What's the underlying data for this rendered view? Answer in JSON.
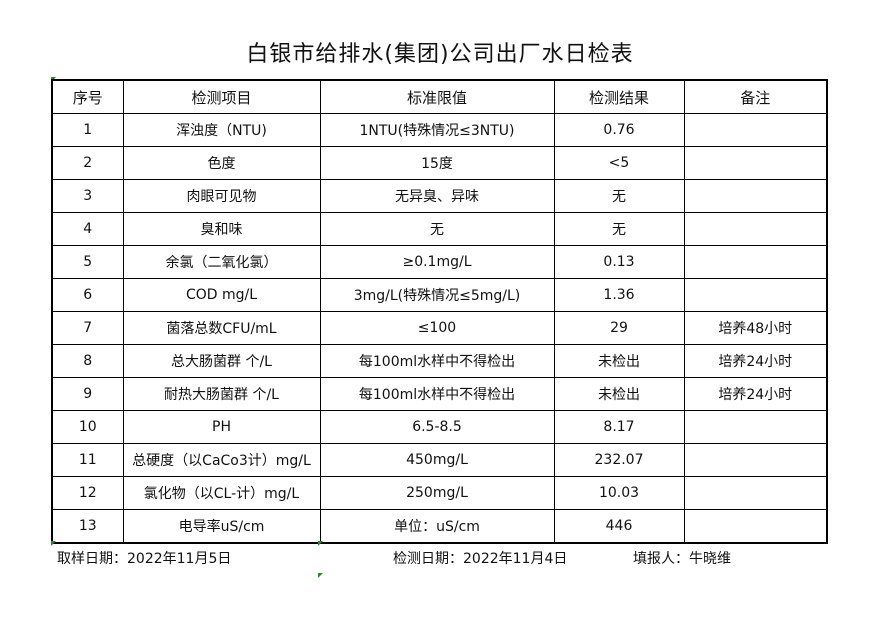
{
  "title": "白银市给排水(集团)公司出厂水日检表",
  "headers": [
    "序号",
    "检测项目",
    "标准限值",
    "检测结果",
    "备注"
  ],
  "rows": [
    [
      "1",
      "浑浊度（NTU)",
      "1NTU(特殊情况≤3NTU)",
      "0.76",
      ""
    ],
    [
      "2",
      "色度",
      "15度",
      "<5",
      ""
    ],
    [
      "3",
      "肉眼可见物",
      "无异臭、异味",
      "无",
      ""
    ],
    [
      "4",
      "臭和味",
      "无",
      "无",
      ""
    ],
    [
      "5",
      "余氯（二氧化氯）",
      "≥0.1mg/L",
      "0.13",
      ""
    ],
    [
      "6",
      "COD        mg/L",
      "3mg/L(特殊情况≤5mg/L)",
      "1.36",
      ""
    ],
    [
      "7",
      "菌落总数CFU/mL",
      "≤100",
      "29",
      "培养48小时"
    ],
    [
      "8",
      "总大肠菌群 个/L",
      "每100ml水样中不得检出",
      "未检出",
      "培养24小时"
    ],
    [
      "9",
      "耐热大肠菌群 个/L",
      "每100ml水样中不得检出",
      "未检出",
      "培养24小时"
    ],
    [
      "10",
      "PH",
      "6.5-8.5",
      "8.17",
      ""
    ],
    [
      "11",
      "总硬度（以CaCo3计）mg/L",
      "450mg/L",
      "232.07",
      ""
    ],
    [
      "12",
      "氯化物（以CL-计）mg/L",
      "250mg/L",
      "10.03",
      ""
    ],
    [
      "13",
      "电导率uS/cm",
      "单位：uS/cm",
      "446",
      ""
    ]
  ],
  "footer": {
    "sample_date": "取样日期：2022年11月5日",
    "test_date": "检测日期：2022年11月4日",
    "reporter": "填报人：牛晓维"
  }
}
